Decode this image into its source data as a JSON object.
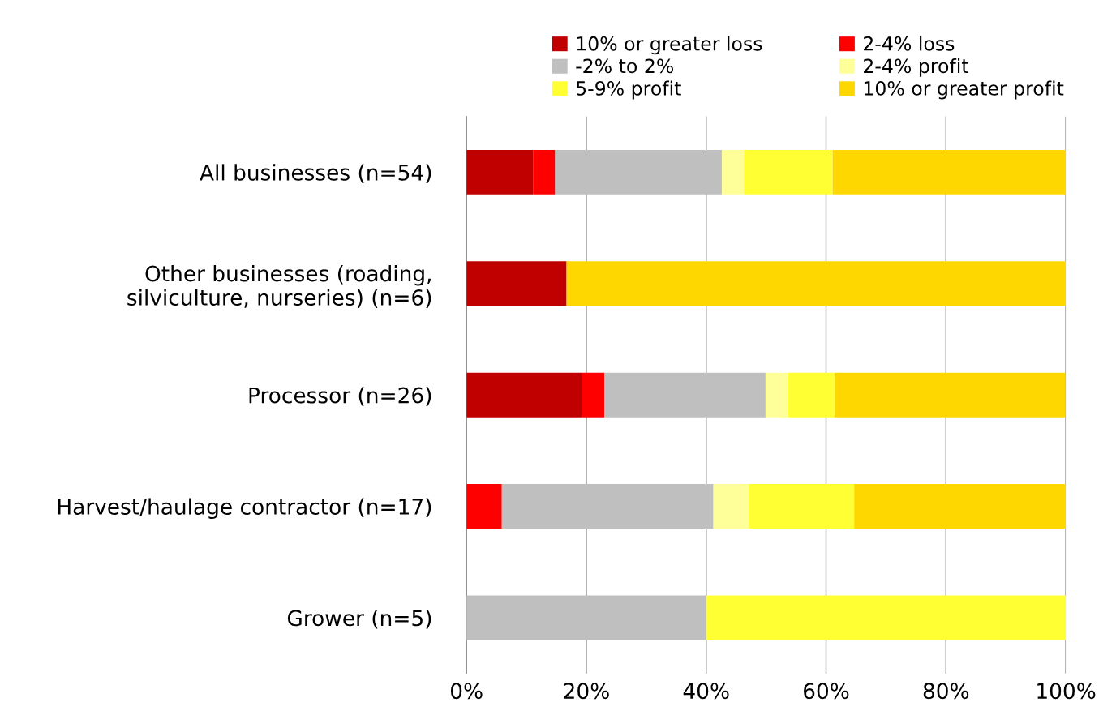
{
  "chart_data": {
    "type": "bar",
    "orientation": "horizontal",
    "stacked": true,
    "categories": [
      "All businesses (n=54)",
      "Other businesses (roading,\nsilviculture, nurseries) (n=6)",
      "Processor (n=26)",
      "Harvest/haulage contractor (n=17)",
      "Grower (n=5)"
    ],
    "series": [
      {
        "name": "10% or greater loss",
        "color": "#c00000",
        "values": [
          11.1,
          16.7,
          19.2,
          0,
          0
        ]
      },
      {
        "name": "2-4% loss",
        "color": "#ff0000",
        "values": [
          3.7,
          0,
          3.8,
          5.9,
          0
        ]
      },
      {
        "name": "-2% to 2%",
        "color": "#bfbfbf",
        "values": [
          27.8,
          0,
          26.9,
          35.3,
          40
        ]
      },
      {
        "name": "2-4% profit",
        "color": "#ffff99",
        "values": [
          3.7,
          0,
          3.8,
          5.9,
          0
        ]
      },
      {
        "name": "5-9% profit",
        "color": "#ffff33",
        "values": [
          14.8,
          0,
          7.7,
          17.6,
          60
        ]
      },
      {
        "name": "10% or greater profit",
        "color": "#ffd700",
        "values": [
          38.9,
          83.3,
          38.5,
          35.3,
          0
        ]
      }
    ],
    "xlim": [
      0,
      100
    ],
    "xticks": [
      {
        "value": 0,
        "label": "0%"
      },
      {
        "value": 20,
        "label": "20%"
      },
      {
        "value": 40,
        "label": "40%"
      },
      {
        "value": 60,
        "label": "60%"
      },
      {
        "value": 80,
        "label": "80%"
      },
      {
        "value": 100,
        "label": "100%"
      }
    ],
    "grid": "x",
    "legend": "top"
  }
}
